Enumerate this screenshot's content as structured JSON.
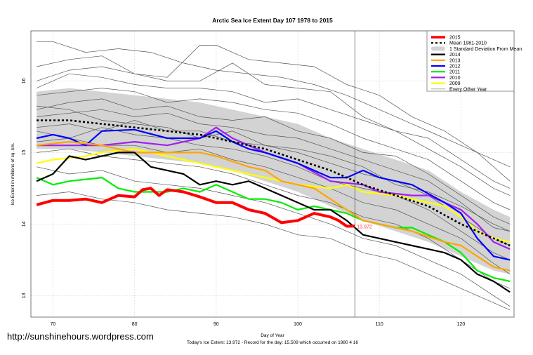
{
  "chart_data": {
    "type": "line",
    "title": "Arctic Sea Ice Extent Day 107 1978 to 2015",
    "xlabel": "Day of Year",
    "ylabel": "Ice Extent in millions of sq. km.",
    "subtitle": "Today's Ice Extent: 13.972  - Record for the day: 15.509 which occurred on 1980 4 16",
    "xlim": [
      67.3,
      126.5
    ],
    "ylim": [
      12.7,
      16.7
    ],
    "xticks": [
      70,
      80,
      90,
      100,
      110,
      120
    ],
    "yticks": [
      13,
      14,
      15,
      16
    ],
    "grid": true,
    "legend_position": "top-right",
    "current_day": 107,
    "current_label": "13.972",
    "band": {
      "name": "1 Standard Deviation From Mean",
      "color": "#d3d3d3",
      "x": [
        68,
        72,
        76,
        80,
        84,
        88,
        92,
        96,
        100,
        104,
        108,
        112,
        116,
        120,
        124,
        126
      ],
      "upper": [
        15.85,
        15.9,
        15.85,
        15.8,
        15.75,
        15.7,
        15.6,
        15.5,
        15.4,
        15.2,
        15.05,
        14.9,
        14.75,
        14.45,
        14.2,
        14.1
      ],
      "lower": [
        15.05,
        15.05,
        15.0,
        14.95,
        14.9,
        14.85,
        14.75,
        14.6,
        14.45,
        14.25,
        14.05,
        13.9,
        13.75,
        13.55,
        13.35,
        13.3
      ]
    },
    "series": [
      {
        "name": "Every Other Year",
        "color": "#555555",
        "width": 0.7,
        "group": "others",
        "lines": [
          {
            "x": [
              68,
              70,
              74,
              78,
              82,
              86,
              90,
              94,
              98,
              102,
              106,
              110,
              114,
              118,
              122,
              126
            ],
            "y": [
              16.55,
              16.55,
              16.4,
              16.45,
              16.4,
              16.25,
              16.15,
              16.1,
              16.05,
              15.95,
              15.8,
              15.6,
              15.4,
              15.2,
              15.0,
              14.8
            ]
          },
          {
            "x": [
              68,
              72,
              76,
              80,
              84,
              88,
              90,
              94,
              98,
              102,
              106,
              110,
              114,
              118,
              122,
              126
            ],
            "y": [
              16.2,
              16.3,
              16.35,
              16.1,
              16.05,
              16.5,
              16.5,
              16.3,
              16.25,
              16.2,
              15.95,
              15.8,
              15.5,
              15.3,
              15.0,
              14.6
            ]
          },
          {
            "x": [
              68,
              72,
              76,
              80,
              84,
              88,
              92,
              96,
              100,
              104,
              108,
              112,
              116,
              120,
              124,
              126
            ],
            "y": [
              16.0,
              16.15,
              16.2,
              16.1,
              16.0,
              16.0,
              16.25,
              15.95,
              15.9,
              15.85,
              15.5,
              15.3,
              15.2,
              14.9,
              14.6,
              14.5
            ]
          },
          {
            "x": [
              68,
              72,
              76,
              80,
              84,
              88,
              92,
              96,
              100,
              104,
              108,
              112,
              116,
              120,
              124,
              126
            ],
            "y": [
              15.9,
              16.1,
              16.05,
              15.95,
              15.9,
              15.9,
              15.85,
              15.7,
              15.75,
              15.6,
              15.45,
              15.3,
              15.05,
              14.8,
              14.5,
              14.4
            ]
          },
          {
            "x": [
              68,
              72,
              76,
              80,
              84,
              88,
              92,
              96,
              100,
              104,
              108,
              112,
              116,
              120,
              124,
              126
            ],
            "y": [
              15.8,
              15.85,
              15.9,
              15.85,
              15.7,
              15.75,
              15.7,
              15.6,
              15.55,
              15.4,
              15.2,
              15.05,
              14.9,
              14.6,
              14.3,
              14.2
            ]
          },
          {
            "x": [
              68,
              72,
              76,
              80,
              84,
              88,
              92,
              96,
              100,
              104,
              108,
              112,
              116,
              120,
              124,
              126
            ],
            "y": [
              15.6,
              15.7,
              15.75,
              15.6,
              15.65,
              15.5,
              15.45,
              15.5,
              15.3,
              15.2,
              15.0,
              14.95,
              14.7,
              14.4,
              14.1,
              14.0
            ]
          },
          {
            "x": [
              68,
              72,
              76,
              80,
              84,
              88,
              92,
              96,
              100,
              104,
              108,
              112,
              116,
              120,
              124,
              126
            ],
            "y": [
              15.5,
              15.55,
              15.6,
              15.5,
              15.55,
              15.4,
              15.35,
              15.25,
              15.2,
              15.05,
              14.9,
              14.75,
              14.6,
              14.3,
              13.95,
              13.9
            ]
          },
          {
            "x": [
              68,
              72,
              76,
              80,
              84,
              88,
              92,
              96,
              100,
              104,
              108,
              112,
              116,
              120,
              124,
              126
            ],
            "y": [
              15.35,
              15.4,
              15.3,
              15.45,
              15.3,
              15.3,
              15.15,
              15.1,
              15.0,
              14.85,
              14.7,
              14.6,
              14.4,
              14.1,
              13.8,
              13.7
            ]
          },
          {
            "x": [
              68,
              72,
              76,
              80,
              84,
              88,
              92,
              96,
              100,
              104,
              108,
              112,
              116,
              120,
              124,
              126
            ],
            "y": [
              15.3,
              15.2,
              15.35,
              15.25,
              15.2,
              15.1,
              15.05,
              14.95,
              14.8,
              14.6,
              14.5,
              14.4,
              14.2,
              13.9,
              13.6,
              13.5
            ]
          },
          {
            "x": [
              68,
              72,
              76,
              80,
              84,
              88,
              92,
              96,
              100,
              104,
              108,
              112,
              116,
              120,
              124,
              126
            ],
            "y": [
              15.15,
              15.2,
              15.1,
              15.1,
              15.0,
              15.05,
              14.9,
              14.8,
              14.65,
              14.5,
              14.3,
              14.2,
              14.0,
              13.8,
              13.45,
              13.3
            ]
          },
          {
            "x": [
              68,
              72,
              76,
              80,
              84,
              88,
              92,
              96,
              100,
              104,
              108,
              112,
              116,
              120,
              124,
              126
            ],
            "y": [
              15.0,
              15.05,
              14.95,
              14.9,
              14.85,
              14.8,
              14.7,
              14.55,
              14.4,
              14.3,
              14.1,
              14.0,
              13.8,
              13.5,
              13.2,
              13.1
            ]
          },
          {
            "x": [
              68,
              72,
              76,
              80,
              84,
              88,
              92,
              96,
              100,
              104,
              108,
              112,
              116,
              120,
              124,
              126
            ],
            "y": [
              14.8,
              14.7,
              14.75,
              14.6,
              14.55,
              14.5,
              14.4,
              14.3,
              14.15,
              14.0,
              13.8,
              13.7,
              13.5,
              13.3,
              13.0,
              12.85
            ]
          },
          {
            "x": [
              68,
              72,
              76,
              80,
              84,
              88,
              92,
              96,
              100,
              104,
              108,
              112,
              116,
              120,
              124,
              126
            ],
            "y": [
              14.4,
              14.45,
              14.35,
              14.3,
              14.2,
              14.15,
              14.1,
              14.0,
              13.85,
              13.8,
              13.6,
              13.5,
              13.3,
              13.1,
              12.9,
              12.8
            ]
          },
          {
            "x": [
              68,
              72,
              76,
              80,
              84,
              88,
              92,
              96,
              100,
              104,
              108,
              112,
              116,
              120,
              124,
              126
            ],
            "y": [
              15.65,
              15.6,
              15.45,
              15.4,
              15.35,
              15.2,
              15.3,
              15.1,
              15.05,
              14.95,
              14.8,
              14.55,
              14.45,
              14.25,
              14.0,
              13.9
            ]
          }
        ]
      },
      {
        "name": "2009",
        "color": "#ffff00",
        "width": 2.2,
        "x": [
          68,
          70,
          74,
          76,
          80,
          84,
          88,
          90,
          94,
          98,
          100,
          104,
          106,
          108,
          112,
          116,
          118,
          120,
          122,
          124,
          126
        ],
        "y": [
          14.85,
          14.9,
          14.95,
          15.0,
          15.05,
          14.95,
          14.85,
          14.8,
          14.7,
          14.6,
          14.55,
          14.5,
          14.55,
          14.45,
          14.4,
          14.3,
          14.25,
          14.1,
          13.9,
          13.8,
          13.75
        ]
      },
      {
        "name": "2010",
        "color": "#a020f0",
        "width": 2.2,
        "x": [
          68,
          72,
          76,
          80,
          84,
          88,
          90,
          92,
          94,
          96,
          100,
          104,
          108,
          110,
          114,
          116,
          118,
          120,
          122,
          124,
          126
        ],
        "y": [
          15.1,
          15.1,
          15.1,
          15.15,
          15.1,
          15.2,
          15.35,
          15.2,
          15.1,
          15.0,
          14.85,
          14.6,
          14.55,
          14.45,
          14.4,
          14.4,
          14.3,
          14.2,
          14.0,
          13.75,
          13.65
        ]
      },
      {
        "name": "2011",
        "color": "#00ee00",
        "width": 2.2,
        "x": [
          68,
          70,
          72,
          76,
          78,
          80,
          84,
          86,
          88,
          90,
          92,
          94,
          96,
          98,
          100,
          102,
          104,
          106,
          108,
          110,
          112,
          114,
          116,
          118,
          120,
          122,
          124,
          126
        ],
        "y": [
          14.65,
          14.55,
          14.6,
          14.65,
          14.5,
          14.45,
          14.45,
          14.5,
          14.45,
          14.55,
          14.45,
          14.35,
          14.35,
          14.3,
          14.2,
          14.25,
          14.2,
          14.15,
          14.05,
          14.0,
          13.95,
          13.95,
          13.85,
          13.75,
          13.6,
          13.35,
          13.25,
          13.2
        ]
      },
      {
        "name": "2012",
        "color": "#0000ff",
        "width": 2.2,
        "x": [
          68,
          70,
          72,
          74,
          76,
          80,
          84,
          88,
          90,
          92,
          94,
          96,
          100,
          104,
          106,
          108,
          110,
          114,
          118,
          120,
          122,
          124,
          126
        ],
        "y": [
          15.2,
          15.25,
          15.2,
          15.1,
          15.3,
          15.32,
          15.2,
          15.2,
          15.3,
          15.15,
          15.05,
          15.0,
          14.85,
          14.65,
          14.65,
          14.75,
          14.65,
          14.55,
          14.3,
          14.15,
          13.8,
          13.55,
          13.5
        ]
      },
      {
        "name": "2013",
        "color": "#ffa500",
        "width": 2.2,
        "x": [
          68,
          72,
          76,
          80,
          84,
          88,
          90,
          94,
          96,
          98,
          100,
          102,
          104,
          106,
          108,
          110,
          114,
          118,
          120,
          122,
          124,
          126
        ],
        "y": [
          15.1,
          15.15,
          15.1,
          15.0,
          15.0,
          15.0,
          14.95,
          14.8,
          14.75,
          14.6,
          14.55,
          14.5,
          14.35,
          14.2,
          14.05,
          14.0,
          13.9,
          13.75,
          13.7,
          13.55,
          13.4,
          13.35
        ]
      },
      {
        "name": "2014",
        "color": "#000000",
        "width": 2.2,
        "x": [
          68,
          70,
          72,
          74,
          76,
          78,
          80,
          82,
          84,
          86,
          88,
          90,
          92,
          94,
          96,
          98,
          100,
          102,
          104,
          106,
          108,
          110,
          112,
          114,
          116,
          118,
          120,
          122,
          124,
          126
        ],
        "y": [
          14.6,
          14.7,
          14.95,
          14.9,
          14.95,
          15.0,
          15.0,
          14.8,
          14.75,
          14.7,
          14.55,
          14.6,
          14.55,
          14.6,
          14.5,
          14.4,
          14.3,
          14.2,
          14.2,
          14.05,
          13.85,
          13.8,
          13.75,
          13.7,
          13.65,
          13.6,
          13.5,
          13.3,
          13.2,
          13.05
        ]
      },
      {
        "name": "Mean 1981-2010",
        "color": "#000000",
        "width": 2.6,
        "dashed": true,
        "x": [
          68,
          72,
          76,
          80,
          84,
          88,
          92,
          96,
          100,
          104,
          108,
          112,
          116,
          120,
          124,
          126
        ],
        "y": [
          15.45,
          15.45,
          15.4,
          15.35,
          15.3,
          15.25,
          15.15,
          15.05,
          14.9,
          14.75,
          14.55,
          14.4,
          14.25,
          14.0,
          13.8,
          13.7
        ]
      },
      {
        "name": "2015",
        "color": "#ff0000",
        "width": 4,
        "x": [
          68,
          70,
          72,
          74,
          76,
          78,
          80,
          81,
          82,
          83,
          84,
          86,
          88,
          90,
          92,
          94,
          96,
          98,
          100,
          102,
          104,
          105,
          106,
          107
        ],
        "y": [
          14.27,
          14.33,
          14.33,
          14.35,
          14.3,
          14.4,
          14.38,
          14.48,
          14.5,
          14.4,
          14.48,
          14.45,
          14.38,
          14.3,
          14.3,
          14.2,
          14.15,
          14.02,
          14.05,
          14.15,
          14.1,
          14.05,
          13.97,
          13.972
        ]
      }
    ],
    "legend": [
      {
        "label": "2015",
        "color": "#ff0000",
        "style": "thick"
      },
      {
        "label": "Mean 1981-2010",
        "color": "#000000",
        "style": "dashed"
      },
      {
        "label": "1 Standard Deviation From Mean",
        "color": "#d3d3d3",
        "style": "band"
      },
      {
        "label": "2014",
        "color": "#000000",
        "style": "line"
      },
      {
        "label": "2013",
        "color": "#ffa500",
        "style": "line"
      },
      {
        "label": "2012",
        "color": "#0000ff",
        "style": "line"
      },
      {
        "label": "2011",
        "color": "#00ee00",
        "style": "line"
      },
      {
        "label": "2010",
        "color": "#a020f0",
        "style": "line"
      },
      {
        "label": "2009",
        "color": "#ffff00",
        "style": "line"
      },
      {
        "label": "Every Other Year",
        "color": "#aaaaaa",
        "style": "thin"
      }
    ]
  },
  "watermark": "http://sunshinehours.wordpress.com"
}
